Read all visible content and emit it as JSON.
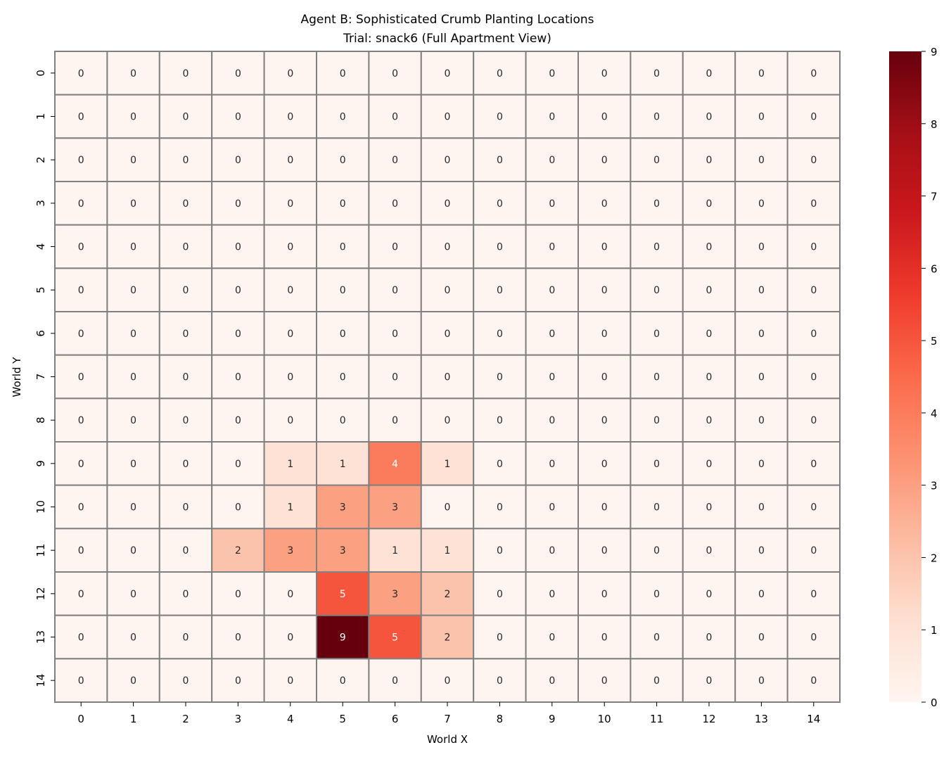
{
  "chart_data": {
    "type": "heatmap",
    "title_lines": [
      "Agent B: Sophisticated Crumb Planting Locations",
      "Trial: snack6 (Full Apartment View)"
    ],
    "xlabel": "World X",
    "ylabel": "World Y",
    "x_categories": [
      "0",
      "1",
      "2",
      "3",
      "4",
      "5",
      "6",
      "7",
      "8",
      "9",
      "10",
      "11",
      "12",
      "13",
      "14"
    ],
    "y_categories": [
      "0",
      "1",
      "2",
      "3",
      "4",
      "5",
      "6",
      "7",
      "8",
      "9",
      "10",
      "11",
      "12",
      "13",
      "14"
    ],
    "values": [
      [
        0,
        0,
        0,
        0,
        0,
        0,
        0,
        0,
        0,
        0,
        0,
        0,
        0,
        0,
        0
      ],
      [
        0,
        0,
        0,
        0,
        0,
        0,
        0,
        0,
        0,
        0,
        0,
        0,
        0,
        0,
        0
      ],
      [
        0,
        0,
        0,
        0,
        0,
        0,
        0,
        0,
        0,
        0,
        0,
        0,
        0,
        0,
        0
      ],
      [
        0,
        0,
        0,
        0,
        0,
        0,
        0,
        0,
        0,
        0,
        0,
        0,
        0,
        0,
        0
      ],
      [
        0,
        0,
        0,
        0,
        0,
        0,
        0,
        0,
        0,
        0,
        0,
        0,
        0,
        0,
        0
      ],
      [
        0,
        0,
        0,
        0,
        0,
        0,
        0,
        0,
        0,
        0,
        0,
        0,
        0,
        0,
        0
      ],
      [
        0,
        0,
        0,
        0,
        0,
        0,
        0,
        0,
        0,
        0,
        0,
        0,
        0,
        0,
        0
      ],
      [
        0,
        0,
        0,
        0,
        0,
        0,
        0,
        0,
        0,
        0,
        0,
        0,
        0,
        0,
        0
      ],
      [
        0,
        0,
        0,
        0,
        0,
        0,
        0,
        0,
        0,
        0,
        0,
        0,
        0,
        0,
        0
      ],
      [
        0,
        0,
        0,
        0,
        1,
        1,
        4,
        1,
        0,
        0,
        0,
        0,
        0,
        0,
        0
      ],
      [
        0,
        0,
        0,
        0,
        1,
        3,
        3,
        0,
        0,
        0,
        0,
        0,
        0,
        0,
        0
      ],
      [
        0,
        0,
        0,
        2,
        3,
        3,
        1,
        1,
        0,
        0,
        0,
        0,
        0,
        0,
        0
      ],
      [
        0,
        0,
        0,
        0,
        0,
        5,
        3,
        2,
        0,
        0,
        0,
        0,
        0,
        0,
        0
      ],
      [
        0,
        0,
        0,
        0,
        0,
        9,
        5,
        2,
        0,
        0,
        0,
        0,
        0,
        0,
        0
      ],
      [
        0,
        0,
        0,
        0,
        0,
        0,
        0,
        0,
        0,
        0,
        0,
        0,
        0,
        0,
        0
      ]
    ],
    "color_range": [
      0,
      9
    ],
    "colorbar_ticks": [
      "0",
      "1",
      "2",
      "3",
      "4",
      "5",
      "6",
      "7",
      "8",
      "9"
    ],
    "colormap": "Reds",
    "colormap_stops": [
      "#fff5f0",
      "#fee0d2",
      "#fcbba1",
      "#fc9272",
      "#fb6a4a",
      "#ef3b2c",
      "#cb181d",
      "#a50f15",
      "#67000d"
    ],
    "grid_line_color": "#808080",
    "annotation_dark_text": "#262626",
    "annotation_light_text": "#ffffff"
  }
}
